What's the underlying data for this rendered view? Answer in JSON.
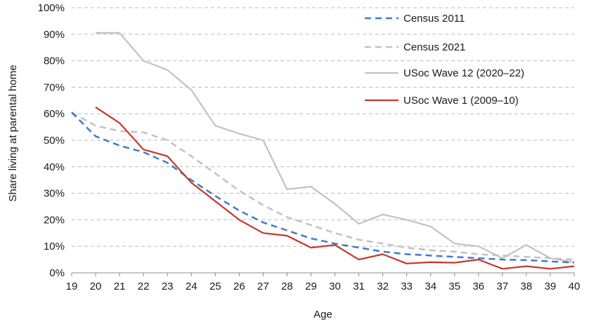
{
  "chart_data": {
    "type": "line",
    "xlabel": "Age",
    "ylabel": "Share living at parental home",
    "xlim": [
      19,
      40
    ],
    "ylim": [
      0,
      100
    ],
    "x_ticks": [
      19,
      20,
      21,
      22,
      23,
      24,
      25,
      26,
      27,
      28,
      29,
      30,
      31,
      32,
      33,
      34,
      35,
      36,
      37,
      38,
      39,
      40
    ],
    "y_ticks": [
      0,
      10,
      20,
      30,
      40,
      50,
      60,
      70,
      80,
      90,
      100
    ],
    "y_tick_labels": [
      "0%",
      "10%",
      "20%",
      "30%",
      "40%",
      "50%",
      "60%",
      "70%",
      "80%",
      "90%",
      "100%"
    ],
    "grid": "horizontal-dashed",
    "legend": "top-right",
    "series": [
      {
        "name": "Census 2011",
        "color": "#3d7cc9",
        "dash": true,
        "x": [
          19,
          20,
          21,
          22,
          23,
          24,
          25,
          26,
          27,
          28,
          29,
          30,
          31,
          32,
          33,
          34,
          35,
          36,
          37,
          38,
          39,
          40
        ],
        "values": [
          60.5,
          51.5,
          48,
          45.5,
          41.5,
          35,
          29,
          23.5,
          19,
          16,
          13,
          11,
          9.5,
          8,
          7,
          6.5,
          6,
          5.5,
          5,
          4.8,
          4.3,
          3.8
        ]
      },
      {
        "name": "Census 2021",
        "color": "#c2c2c2",
        "dash": true,
        "x": [
          19,
          20,
          21,
          22,
          23,
          24,
          25,
          26,
          27,
          28,
          29,
          30,
          31,
          32,
          33,
          34,
          35,
          36,
          37,
          38,
          39,
          40
        ],
        "values": [
          60.5,
          55.5,
          53.5,
          53,
          50,
          44,
          37.5,
          31,
          25.5,
          21,
          18,
          15,
          12.5,
          11,
          9.5,
          8.5,
          8,
          7,
          6.5,
          6,
          5.5,
          5
        ]
      },
      {
        "name": "USoc Wave 12 (2020–22)",
        "color": "#c2c2c2",
        "dash": false,
        "x": [
          20,
          21,
          22,
          23,
          24,
          25,
          26,
          27,
          28,
          29,
          30,
          31,
          32,
          33,
          34,
          35,
          36,
          37,
          38,
          39,
          40
        ],
        "values": [
          90.5,
          90.5,
          80,
          76.5,
          69,
          55.5,
          52.5,
          50,
          31.5,
          32.5,
          26,
          18.5,
          22,
          20,
          17.5,
          11,
          10,
          5.5,
          10.5,
          5.5,
          4
        ]
      },
      {
        "name": "USoc Wave 1 (2009–10)",
        "color": "#c6372a",
        "dash": false,
        "x": [
          20,
          21,
          22,
          23,
          24,
          25,
          26,
          27,
          28,
          29,
          30,
          31,
          32,
          33,
          34,
          35,
          36,
          37,
          38,
          39,
          40
        ],
        "values": [
          62.5,
          56.5,
          46.5,
          44,
          34,
          27,
          20,
          15,
          14,
          9.5,
          10.5,
          5,
          7,
          3.5,
          4,
          3.8,
          5,
          1.5,
          2.5,
          1.5,
          2.5
        ]
      }
    ]
  }
}
